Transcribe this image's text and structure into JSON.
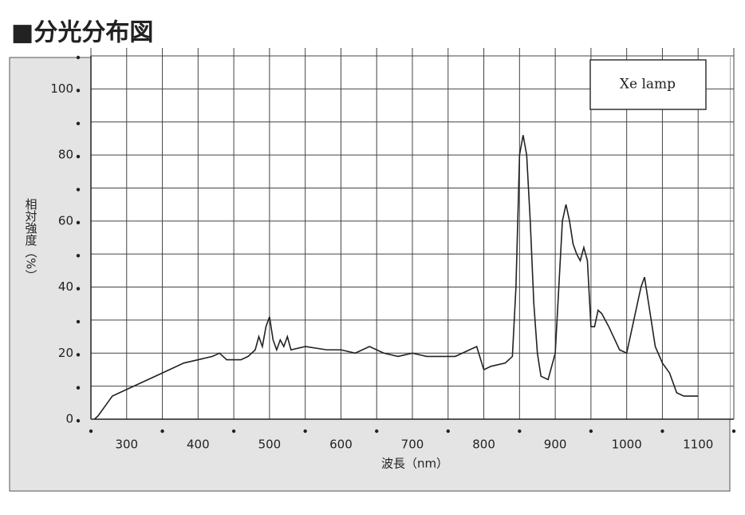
{
  "chart_data": {
    "type": "line",
    "title": "■分光分布図",
    "xlabel": "波長（nm）",
    "ylabel": "相対強度（%）",
    "xlim": [
      250,
      1150
    ],
    "ylim": [
      0,
      110
    ],
    "xticks": [
      300,
      400,
      500,
      600,
      700,
      800,
      900,
      1000,
      1100
    ],
    "minor_xticks": [
      250,
      350,
      450,
      550,
      650,
      750,
      850,
      950,
      1050,
      1150
    ],
    "yticks": [
      0,
      20,
      40,
      60,
      80,
      100
    ],
    "minor_yticks": [
      10,
      30,
      50,
      70,
      90,
      110
    ],
    "grid": true,
    "legend": "upper right",
    "series": [
      {
        "name": "Xe lamp",
        "color": "#222222",
        "x": [
          255,
          260,
          270,
          280,
          300,
          320,
          350,
          380,
          400,
          420,
          430,
          440,
          460,
          470,
          480,
          485,
          490,
          495,
          500,
          505,
          510,
          515,
          520,
          525,
          530,
          550,
          580,
          600,
          620,
          640,
          660,
          680,
          700,
          720,
          740,
          760,
          780,
          790,
          800,
          810,
          830,
          840,
          845,
          850,
          855,
          860,
          865,
          870,
          875,
          880,
          890,
          900,
          905,
          910,
          915,
          920,
          925,
          930,
          935,
          940,
          945,
          950,
          955,
          960,
          965,
          975,
          990,
          1000,
          1010,
          1020,
          1025,
          1030,
          1040,
          1050,
          1060,
          1070,
          1080,
          1090,
          1100
        ],
        "values": [
          0,
          1,
          4,
          7,
          9,
          11,
          14,
          17,
          18,
          19,
          20,
          18,
          18,
          19,
          21,
          25,
          22,
          28,
          31,
          24,
          21,
          24,
          22,
          25,
          21,
          22,
          21,
          21,
          20,
          22,
          20,
          19,
          20,
          19,
          19,
          19,
          21,
          22,
          15,
          16,
          17,
          19,
          40,
          80,
          86,
          80,
          60,
          35,
          20,
          13,
          12,
          20,
          40,
          60,
          65,
          60,
          53,
          50,
          48,
          52,
          48,
          28,
          28,
          33,
          32,
          28,
          21,
          20,
          30,
          40,
          43,
          36,
          22,
          17,
          14,
          8,
          7,
          7,
          7
        ]
      }
    ]
  }
}
